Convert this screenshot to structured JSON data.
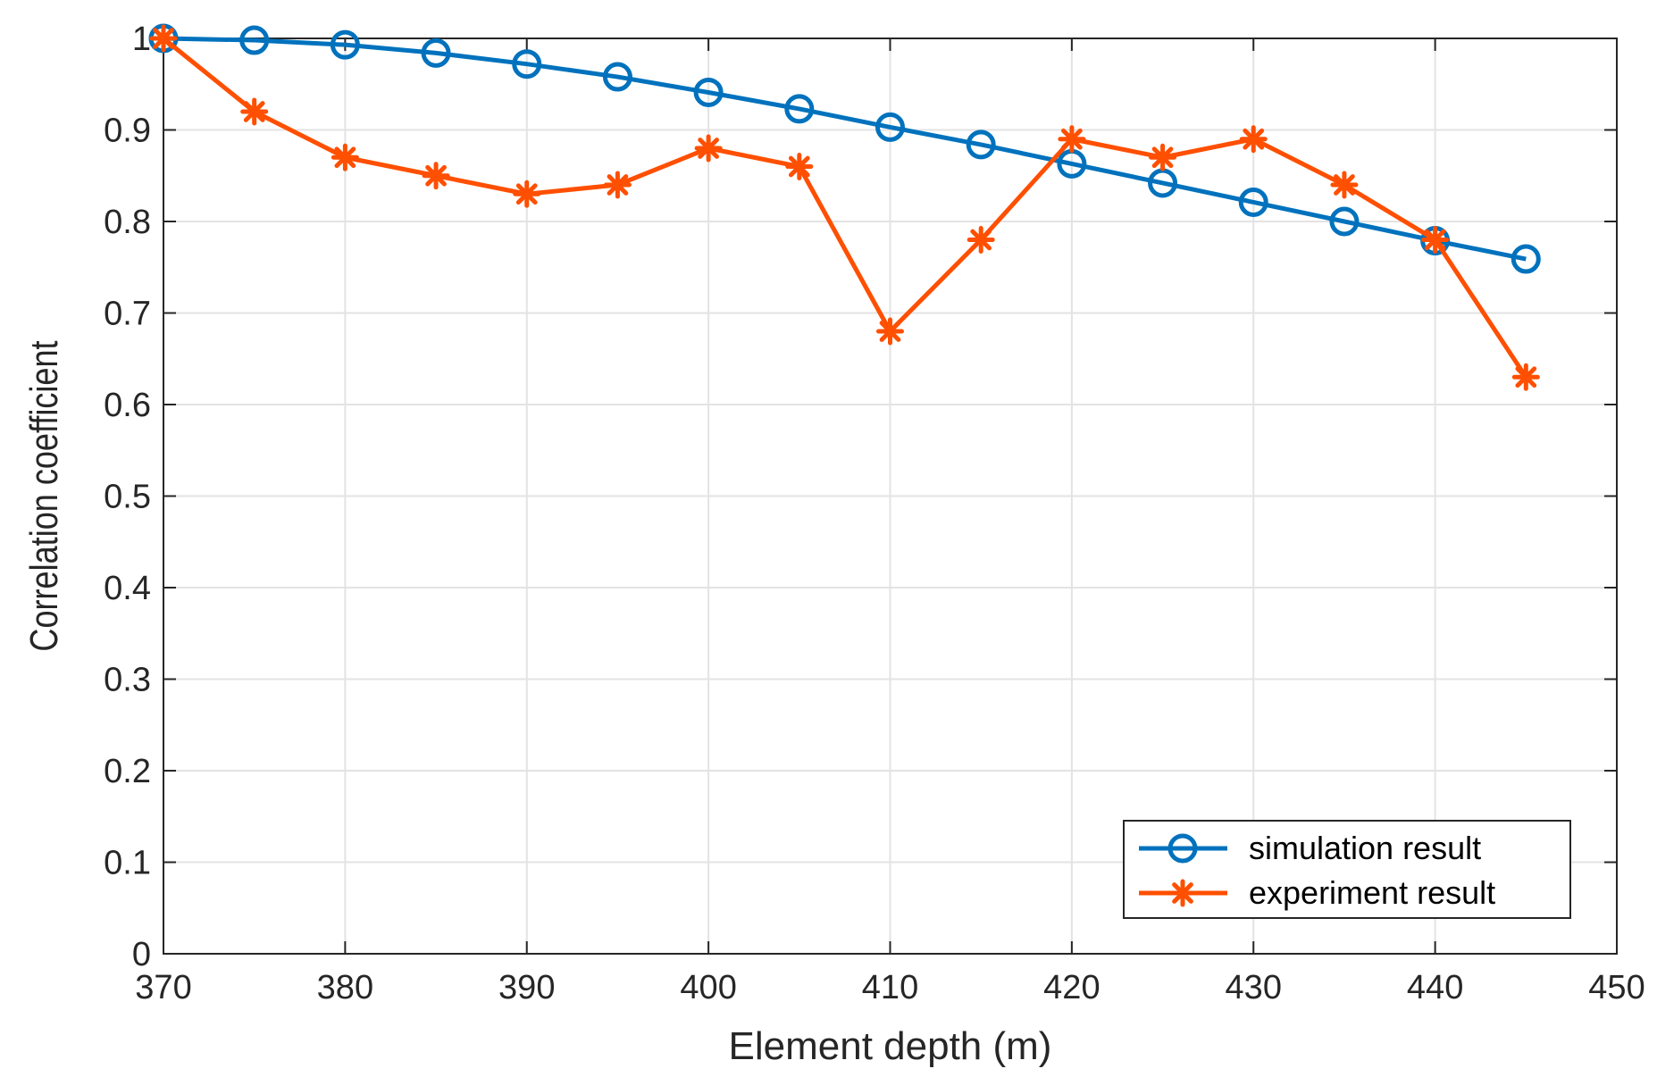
{
  "chart_data": {
    "type": "line",
    "title": "",
    "xlabel": "Element depth (m)",
    "ylabel": "Correlation coefficient",
    "xlim": [
      370,
      450
    ],
    "ylim": [
      0,
      1
    ],
    "grid": true,
    "xticks": [
      370,
      380,
      390,
      400,
      410,
      420,
      430,
      440,
      450
    ],
    "yticks": [
      0,
      0.1,
      0.2,
      0.3,
      0.4,
      0.5,
      0.6,
      0.7,
      0.8,
      0.9,
      1
    ],
    "xtick_labels": [
      "370",
      "380",
      "390",
      "400",
      "410",
      "420",
      "430",
      "440",
      "450"
    ],
    "ytick_labels": [
      "0",
      "0.1",
      "0.2",
      "0.3",
      "0.4",
      "0.5",
      "0.6",
      "0.7",
      "0.8",
      "0.9",
      "1"
    ],
    "legend_position": "bottom-right",
    "x": [
      370,
      375,
      380,
      385,
      390,
      395,
      400,
      405,
      410,
      415,
      420,
      425,
      430,
      435,
      440,
      445
    ],
    "series": [
      {
        "name": "simulation result",
        "color": "#0072BD",
        "marker": "circle",
        "values": [
          1.0,
          0.998,
          0.993,
          0.984,
          0.972,
          0.958,
          0.941,
          0.923,
          0.903,
          0.884,
          0.863,
          0.842,
          0.821,
          0.8,
          0.779,
          0.759
        ]
      },
      {
        "name": "experiment result",
        "color": "#FF4F00",
        "marker": "asterisk",
        "values": [
          1.0,
          0.92,
          0.87,
          0.85,
          0.83,
          0.84,
          0.88,
          0.86,
          0.68,
          0.78,
          0.89,
          0.87,
          0.89,
          0.84,
          0.78,
          0.63
        ]
      }
    ]
  }
}
